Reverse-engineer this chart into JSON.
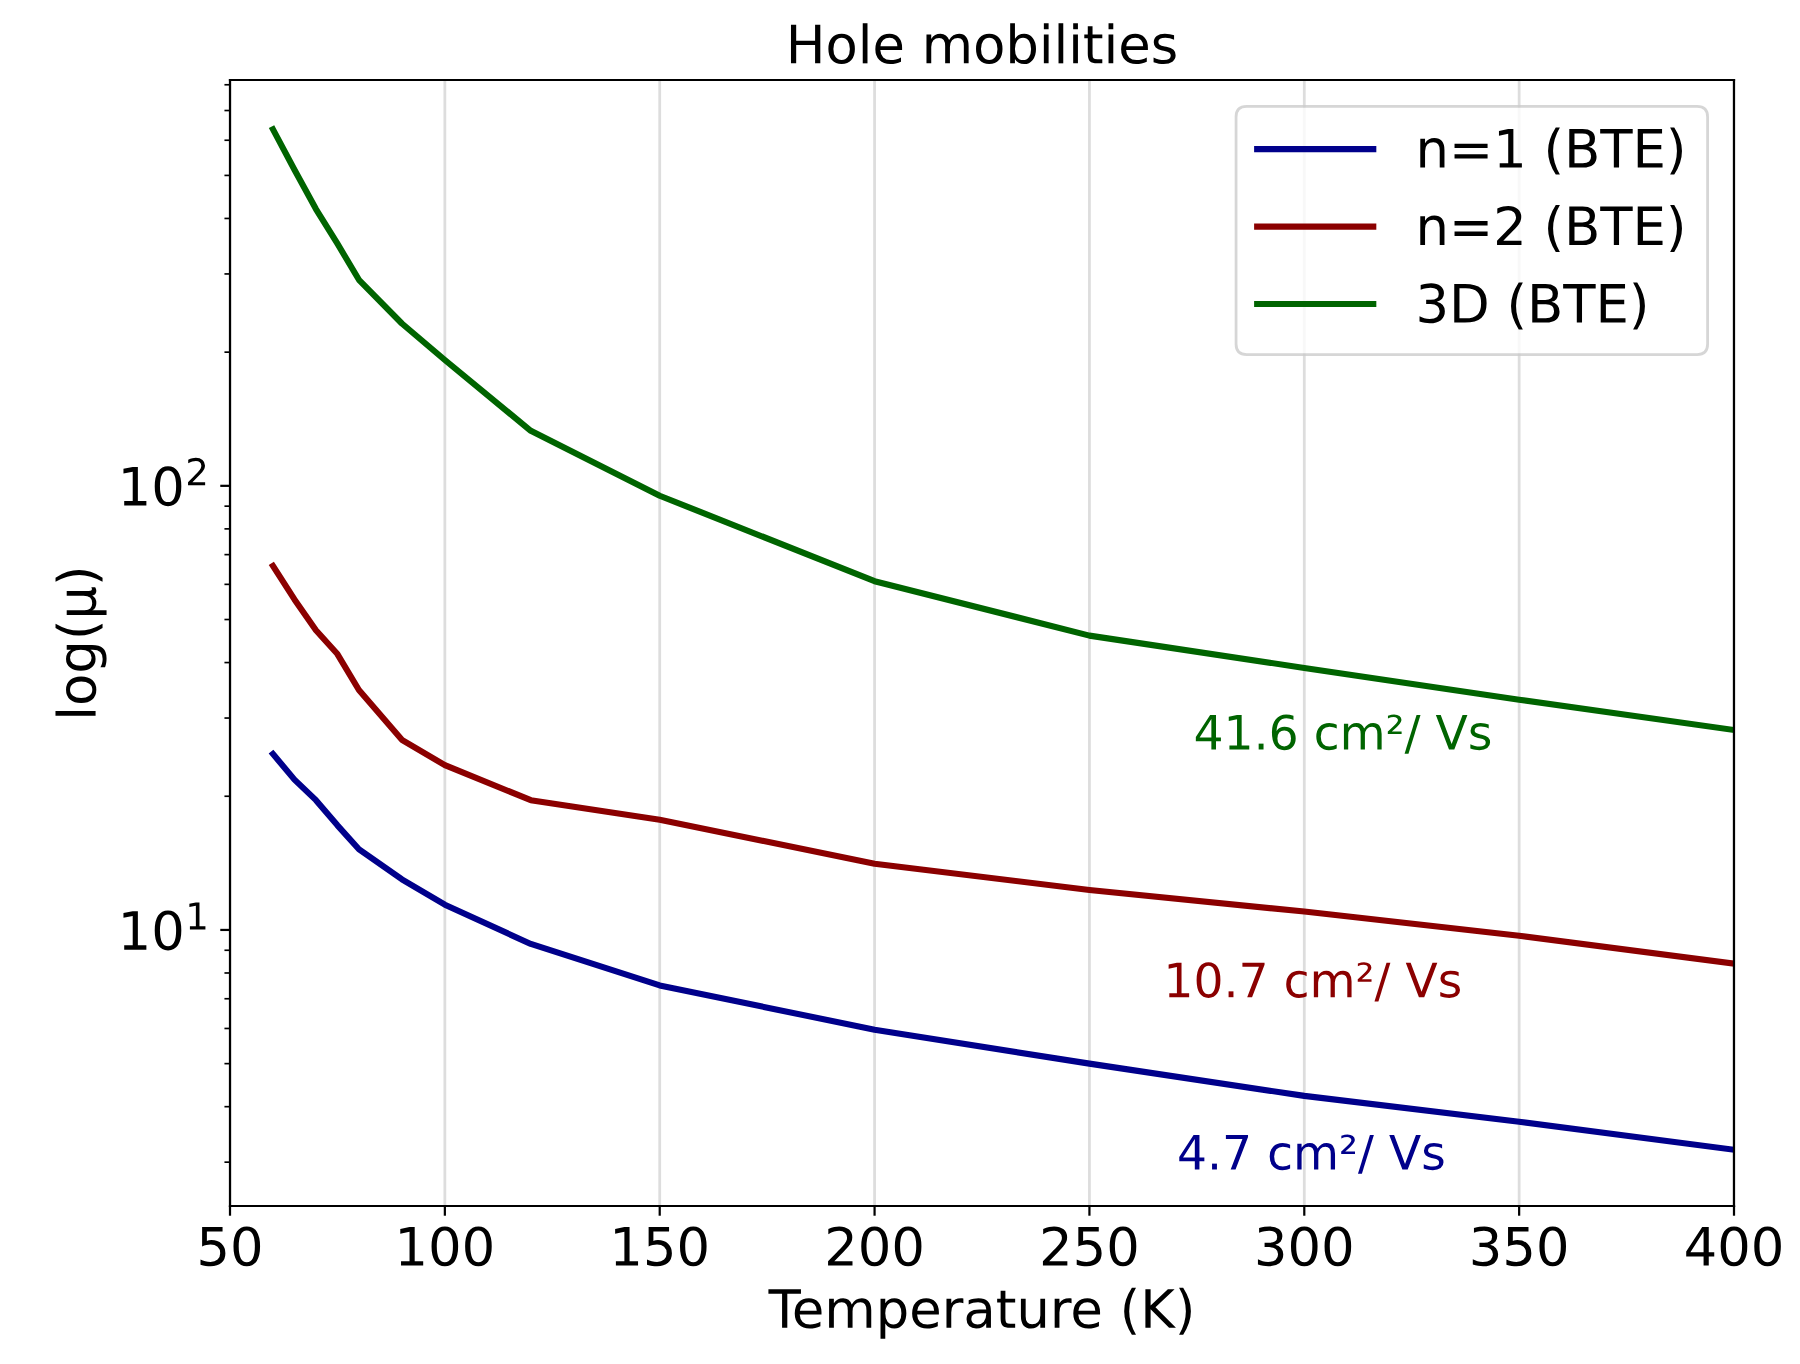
{
  "chart_data": {
    "type": "line",
    "title": "Hole mobilities",
    "xlabel": "Temperature (K)",
    "ylabel": "log(μ)",
    "x": [
      60,
      65,
      70,
      75,
      80,
      90,
      100,
      120,
      150,
      200,
      250,
      300,
      350,
      400
    ],
    "series": [
      {
        "name": "n=1 (BTE)",
        "color": "#00008b",
        "values": [
          24.9,
          21.8,
          19.6,
          17.2,
          15.2,
          13.0,
          11.4,
          9.3,
          7.5,
          5.96,
          5.0,
          4.23,
          3.7,
          3.2
        ]
      },
      {
        "name": "n=2 (BTE)",
        "color": "#8b0000",
        "values": [
          66,
          55.5,
          47.3,
          41.8,
          34.7,
          26.8,
          23.5,
          19.6,
          17.7,
          14.1,
          12.3,
          11.0,
          9.7,
          8.4
        ]
      },
      {
        "name": "3D (BTE)",
        "color": "#006400",
        "values": [
          635,
          515,
          420,
          351,
          291,
          232,
          192,
          133,
          95,
          61,
          46,
          38.9,
          33,
          28.2
        ]
      }
    ],
    "annotations": [
      "4.7 cm²/ Vs",
      "10.7 cm²/ Vs",
      "41.6 cm²/ Vs"
    ],
    "log": "y",
    "xlim": [
      50,
      400
    ],
    "ylim": [
      2.39,
      820
    ],
    "xticks": [
      50,
      100,
      150,
      200,
      250,
      300,
      350,
      400
    ],
    "yticks": [
      {
        "value": 10,
        "label": "10$^{1}$"
      },
      {
        "value": 100,
        "label": "10$^{2}$"
      }
    ],
    "grid": "x",
    "legend": "top right",
    "line_style": "solid",
    "marker": "none"
  }
}
